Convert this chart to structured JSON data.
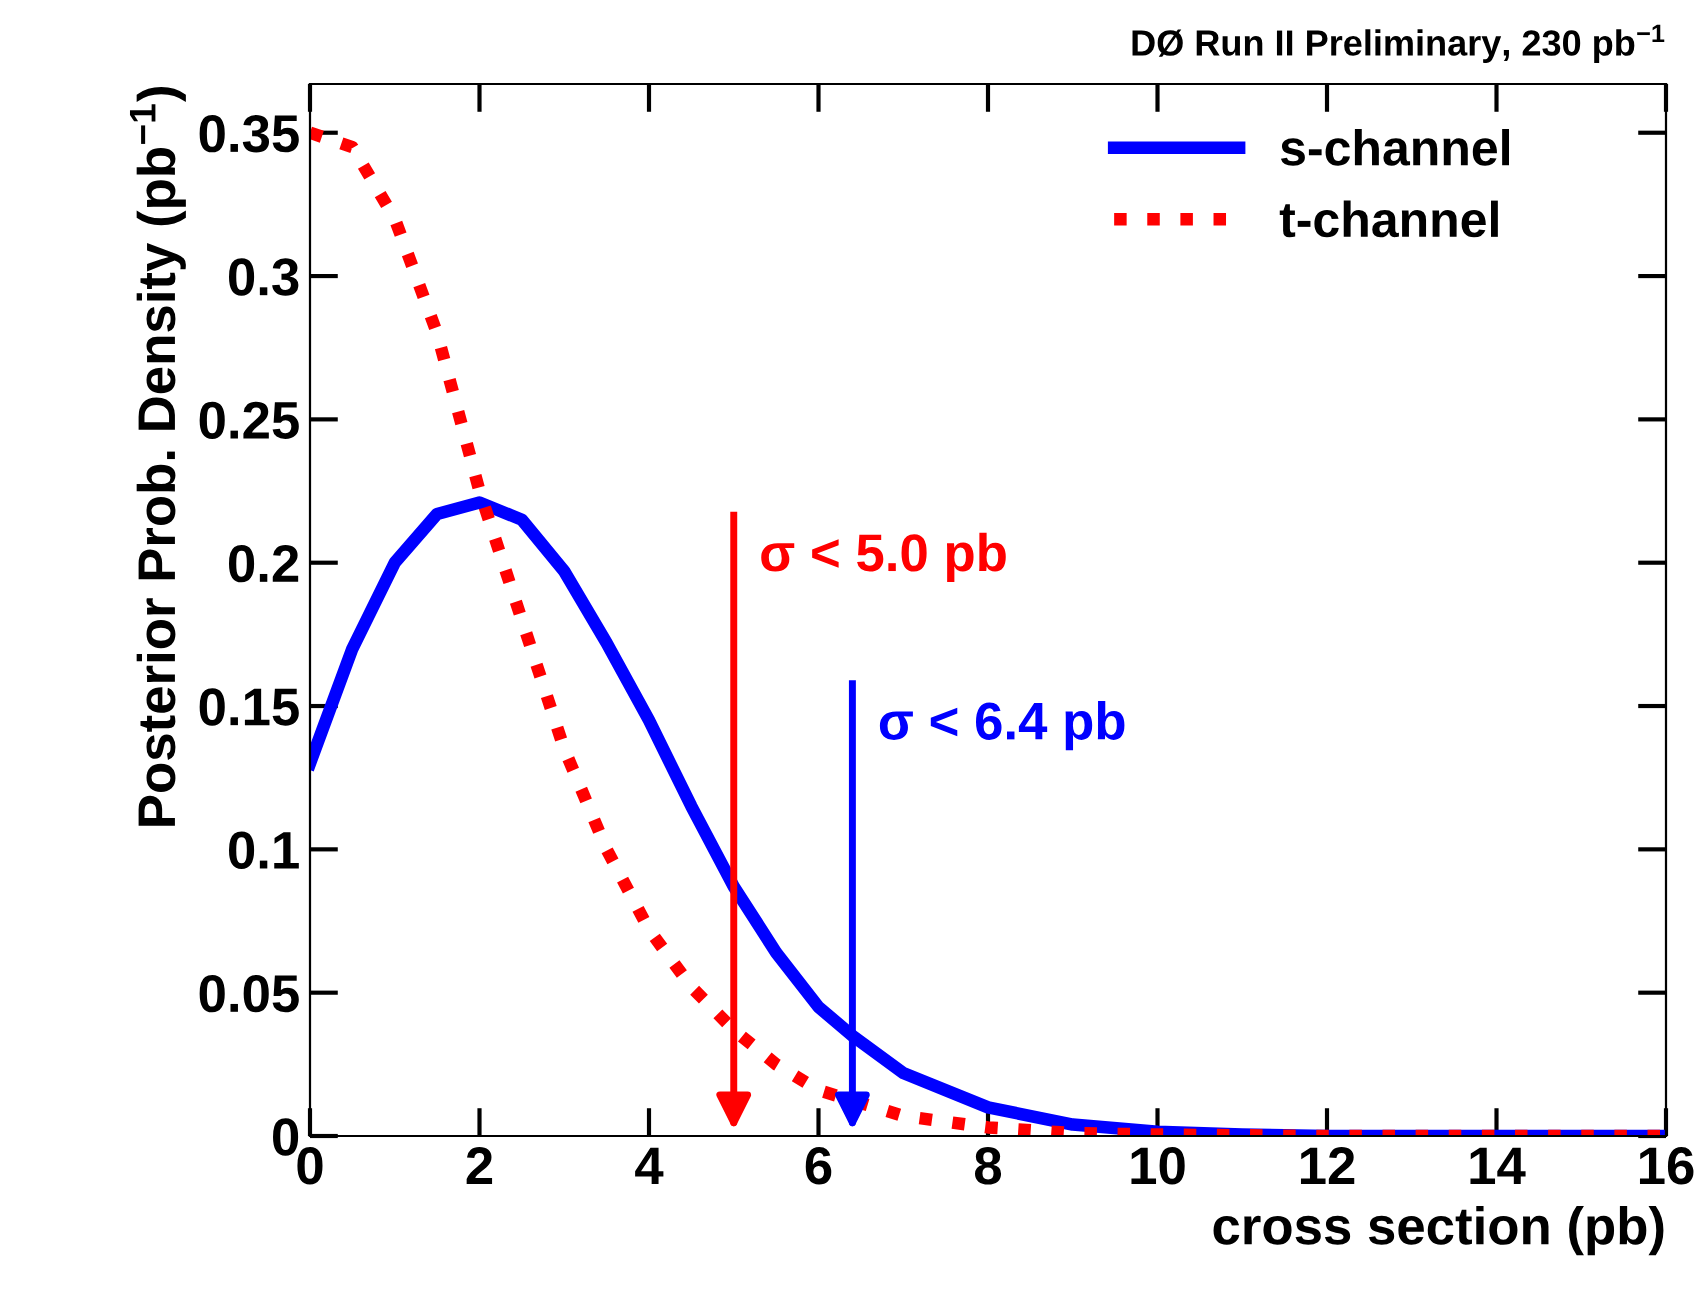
{
  "chart_data": {
    "type": "line",
    "title": "DØ Run II Preliminary, 230 pb$^{−1}$",
    "xlabel": "cross section (pb)",
    "ylabel": "Posterior Prob. Density (pb$^{−1}$)",
    "series": [
      {
        "name": "s-channel",
        "color": "#0000ff",
        "line_style": "solid",
        "x": [
          0,
          0.5,
          1,
          1.5,
          2,
          2.5,
          3,
          3.5,
          4,
          4.5,
          5,
          5.5,
          6,
          6.4,
          7,
          8,
          9,
          10,
          11,
          12,
          16
        ],
        "values": [
          0.13,
          0.17,
          0.2,
          0.217,
          0.221,
          0.215,
          0.197,
          0.172,
          0.145,
          0.115,
          0.087,
          0.064,
          0.045,
          0.035,
          0.022,
          0.01,
          0.004,
          0.0015,
          0.0005,
          0,
          0
        ]
      },
      {
        "name": "t-channel",
        "color": "#ff0000",
        "line_style": "dotted",
        "x": [
          0,
          0.5,
          1,
          1.5,
          2,
          2.5,
          3,
          3.5,
          4,
          4.5,
          5,
          5.5,
          6,
          7,
          8,
          9,
          10,
          12,
          16
        ],
        "values": [
          0.35,
          0.345,
          0.32,
          0.28,
          0.225,
          0.18,
          0.135,
          0.1,
          0.072,
          0.052,
          0.037,
          0.025,
          0.016,
          0.007,
          0.003,
          0.001,
          0.0005,
          0,
          0
        ]
      }
    ],
    "ref_lines": [
      {
        "axis": "x",
        "value": 5.0,
        "label": "σ < 5.0 pb",
        "color": "#ff0000"
      },
      {
        "axis": "x",
        "value": 6.4,
        "label": "σ < 6.4 pb",
        "color": "#0000ff"
      }
    ],
    "xlim": [
      0,
      16
    ],
    "xticks": [
      0,
      2,
      4,
      6,
      8,
      10,
      12,
      14,
      16
    ],
    "ylim": [
      0,
      0.367
    ],
    "yticks": [
      0,
      0.05,
      0.1,
      0.15,
      0.2,
      0.25,
      0.3,
      0.35
    ],
    "grid": false,
    "legend": "top right"
  }
}
